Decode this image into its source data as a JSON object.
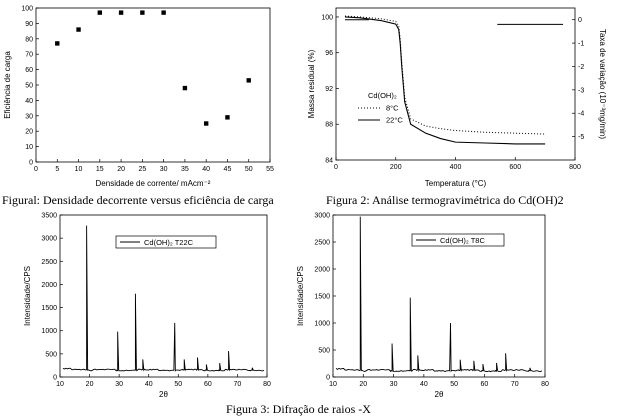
{
  "captions": {
    "fig1": "Figural: Densidade decorrente versus eficiência de carga",
    "fig2": "Figura 2: Análise termogravimétrica do Cd(OH)2",
    "fig3": "Figura 3: Difração de raios -X"
  },
  "chart_data": [
    {
      "id": "fig1",
      "type": "scatter",
      "xlabel": "Densidade de corrente/ mAcm⁻²",
      "ylabel": "Eficiência de carga",
      "xlim": [
        0,
        55
      ],
      "ylim": [
        0,
        100
      ],
      "xticks": [
        0,
        5,
        10,
        15,
        20,
        25,
        30,
        35,
        40,
        45,
        50,
        55
      ],
      "yticks": [
        0,
        10,
        20,
        30,
        40,
        50,
        60,
        70,
        80,
        90,
        100
      ],
      "x": [
        5,
        10,
        15,
        20,
        25,
        30,
        35,
        40,
        45,
        50
      ],
      "y": [
        77,
        86,
        97,
        97,
        97,
        97,
        48,
        25,
        29,
        53
      ]
    },
    {
      "id": "fig2",
      "type": "line",
      "xlabel": "Temperatura (°C)",
      "ylabel": "Massa residual (%)",
      "ylabel_right": "Taxa de variação (10⁻³mg/min)",
      "xlim": [
        0,
        800
      ],
      "ylim_left": [
        84,
        101
      ],
      "ylim_right": [
        -6,
        0.5
      ],
      "xticks": [
        0,
        200,
        400,
        600,
        800
      ],
      "yticks_left": [
        84,
        88,
        92,
        96,
        100
      ],
      "ytick_labels_left": [
        "84",
        "88",
        "92",
        "96",
        "100"
      ],
      "yticks_right": [
        0,
        -1,
        -2,
        -3,
        -4,
        -5
      ],
      "legend_title": "Cd(OH)₂",
      "series": [
        {
          "name": "8°C",
          "style": "dotted",
          "x": [
            30,
            80,
            150,
            200,
            210,
            215,
            220,
            230,
            250,
            300,
            350,
            400,
            500,
            600,
            700
          ],
          "y": [
            100.1,
            100.0,
            99.8,
            99.5,
            99.0,
            97.5,
            95.0,
            91.0,
            88.6,
            87.8,
            87.5,
            87.3,
            87.1,
            87.0,
            86.9
          ]
        },
        {
          "name": "22°C",
          "style": "solid",
          "x": [
            30,
            80,
            150,
            200,
            210,
            215,
            220,
            230,
            250,
            300,
            350,
            400,
            500,
            600,
            700
          ],
          "y": [
            100.0,
            99.9,
            99.6,
            99.2,
            98.6,
            97.0,
            94.5,
            90.5,
            88.0,
            87.0,
            86.4,
            86.0,
            85.9,
            85.8,
            85.8
          ]
        },
        {
          "name": "",
          "style": "solid",
          "axis": "right",
          "segments": [
            {
              "x": [
                30,
                110
              ],
              "y": [
                0.0,
                0.0
              ]
            },
            {
              "x": [
                540,
                760
              ],
              "y": [
                -0.2,
                -0.2
              ]
            }
          ]
        }
      ]
    },
    {
      "id": "fig3a",
      "type": "line",
      "xlabel": "2θ",
      "ylabel": "Intensidade/CPS",
      "xlim": [
        10,
        80
      ],
      "ylim": [
        0,
        3500
      ],
      "xticks": [
        10,
        20,
        30,
        40,
        50,
        60,
        70,
        80
      ],
      "yticks": [
        0,
        500,
        1000,
        1500,
        2000,
        2500,
        3000,
        3500
      ],
      "legend": "Cd(OH)₂ T22C",
      "baseline": 150,
      "peaks": [
        {
          "x": 19,
          "y": 3270
        },
        {
          "x": 29.5,
          "y": 980
        },
        {
          "x": 35.5,
          "y": 1800
        },
        {
          "x": 38,
          "y": 380
        },
        {
          "x": 48.8,
          "y": 1170
        },
        {
          "x": 52,
          "y": 380
        },
        {
          "x": 56.5,
          "y": 420
        },
        {
          "x": 59.5,
          "y": 270
        },
        {
          "x": 64,
          "y": 300
        },
        {
          "x": 67,
          "y": 560
        },
        {
          "x": 75,
          "y": 200
        }
      ]
    },
    {
      "id": "fig3b",
      "type": "line",
      "xlabel": "2θ",
      "ylabel": "Intensidade/CPS",
      "xlim": [
        10,
        80
      ],
      "ylim": [
        0,
        3000
      ],
      "xticks": [
        10,
        20,
        30,
        40,
        50,
        60,
        70,
        80
      ],
      "yticks": [
        0,
        500,
        1000,
        1500,
        2000,
        2500,
        3000
      ],
      "legend": "Cd(OH)₂ T8C",
      "baseline": 120,
      "peaks": [
        {
          "x": 19,
          "y": 2970
        },
        {
          "x": 29.5,
          "y": 620
        },
        {
          "x": 35.5,
          "y": 1470
        },
        {
          "x": 38,
          "y": 400
        },
        {
          "x": 48.8,
          "y": 1000
        },
        {
          "x": 52,
          "y": 320
        },
        {
          "x": 56.5,
          "y": 300
        },
        {
          "x": 59.5,
          "y": 240
        },
        {
          "x": 64,
          "y": 260
        },
        {
          "x": 67,
          "y": 440
        },
        {
          "x": 75,
          "y": 170
        }
      ]
    }
  ]
}
